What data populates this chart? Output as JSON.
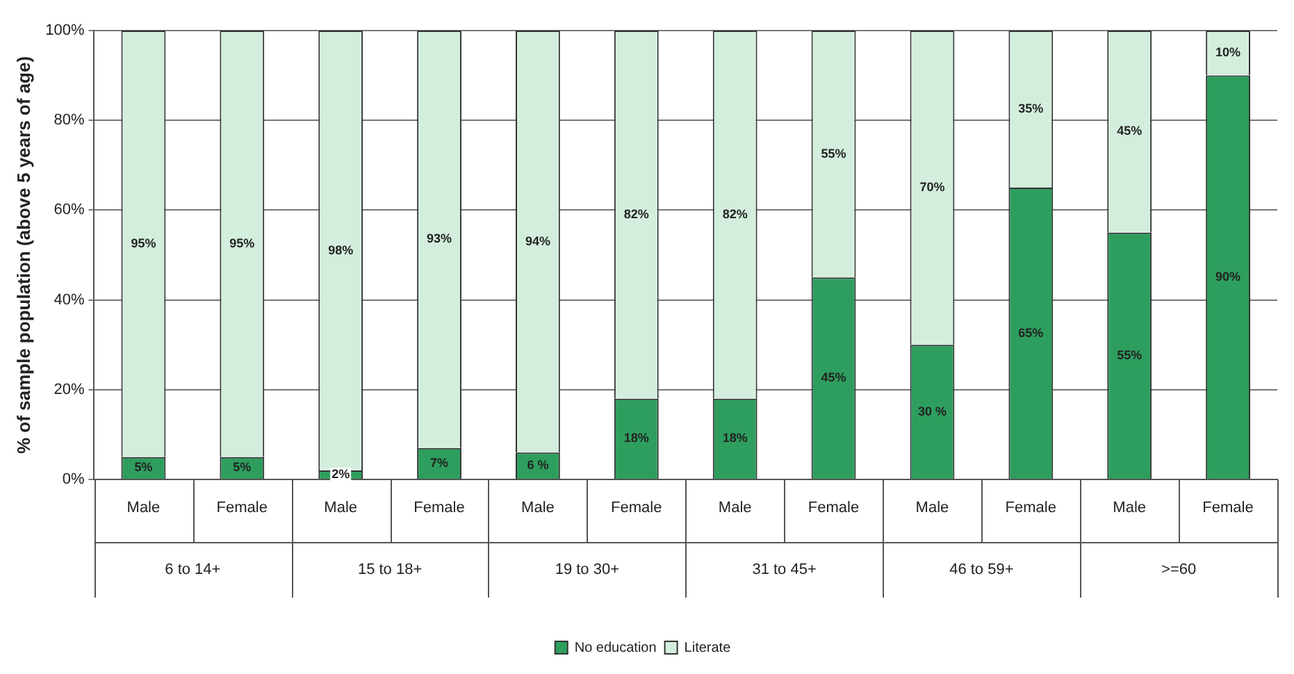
{
  "chart_data": {
    "type": "bar",
    "stacked": true,
    "ylabel": "% of sample population (above 5 years of age)",
    "categories": [
      "Male",
      "Female",
      "Male",
      "Female",
      "Male",
      "Female",
      "Male",
      "Female",
      "Male",
      "Female",
      "Male",
      "Female"
    ],
    "annotations": [
      "6 to 14+",
      "15 to 18+",
      "19 to 30+",
      "31 to 45+",
      "46 to 59+",
      ">=60"
    ],
    "series": [
      {
        "name": "No education",
        "color": "#2e9e5e",
        "values": [
          5,
          5,
          2,
          7,
          6,
          18,
          18,
          45,
          30,
          65,
          55,
          90
        ],
        "value_labels": [
          "5%",
          "5%",
          "2%",
          "7%",
          "6 %",
          "18%",
          "18%",
          "45%",
          "30 %",
          "65%",
          "55%",
          "90%"
        ]
      },
      {
        "name": "Literate",
        "color": "#d4eedd",
        "values": [
          95,
          95,
          98,
          93,
          94,
          82,
          82,
          55,
          70,
          35,
          45,
          10
        ],
        "value_labels": [
          "95%",
          "95%",
          "98%",
          "93%",
          "94%",
          "82%",
          "82%",
          "55%",
          "70%",
          "35%",
          "45%",
          "10%"
        ]
      }
    ],
    "ylim": [
      0,
      100
    ],
    "yticks": [
      {
        "value": 0,
        "label": "0%"
      },
      {
        "value": 20,
        "label": "20%"
      },
      {
        "value": 40,
        "label": "40%"
      },
      {
        "value": 60,
        "label": "60%"
      },
      {
        "value": 80,
        "label": "80%"
      },
      {
        "value": 100,
        "label": "100%"
      }
    ],
    "grid": "y",
    "legend": "bottom"
  }
}
